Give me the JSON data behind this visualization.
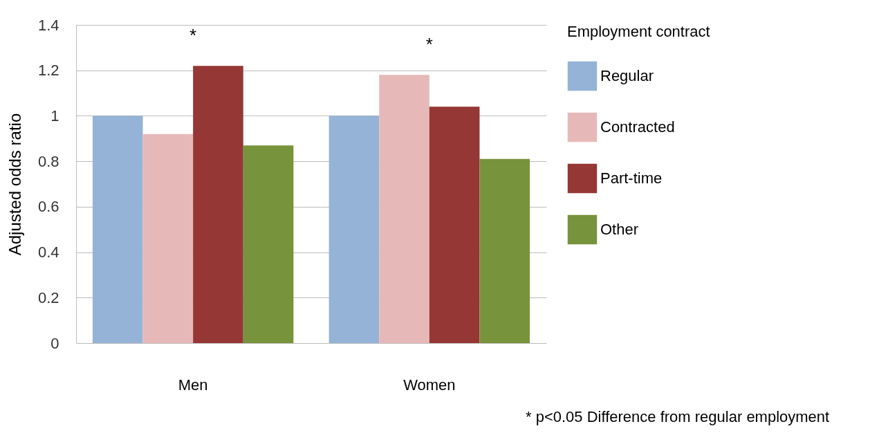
{
  "chart_data": {
    "type": "bar",
    "ylabel": "Adjusted odds ratio",
    "legend_title": "Employment contract",
    "categories": [
      "Men",
      "Women"
    ],
    "series": [
      {
        "name": "Regular",
        "color": "#95b3d7",
        "values": [
          1.0,
          1.0
        ]
      },
      {
        "name": "Contracted",
        "color": "#e6b9b8",
        "values": [
          0.92,
          1.18
        ]
      },
      {
        "name": "Part-time",
        "color": "#953735",
        "values": [
          1.22,
          1.04
        ]
      },
      {
        "name": "Other",
        "color": "#77933c",
        "values": [
          0.87,
          0.81
        ]
      }
    ],
    "ylim": [
      0,
      1.4
    ],
    "yticks": [
      0,
      0.2,
      0.4,
      0.6,
      0.8,
      1,
      1.2,
      1.4
    ],
    "grid": "y",
    "legend": "right",
    "annotations": [
      {
        "text": "*",
        "x": "Men",
        "y": 1.22
      },
      {
        "text": "*",
        "x": "Women",
        "y": 1.18
      },
      "* p<0.05 Difference from regular employment"
    ]
  }
}
